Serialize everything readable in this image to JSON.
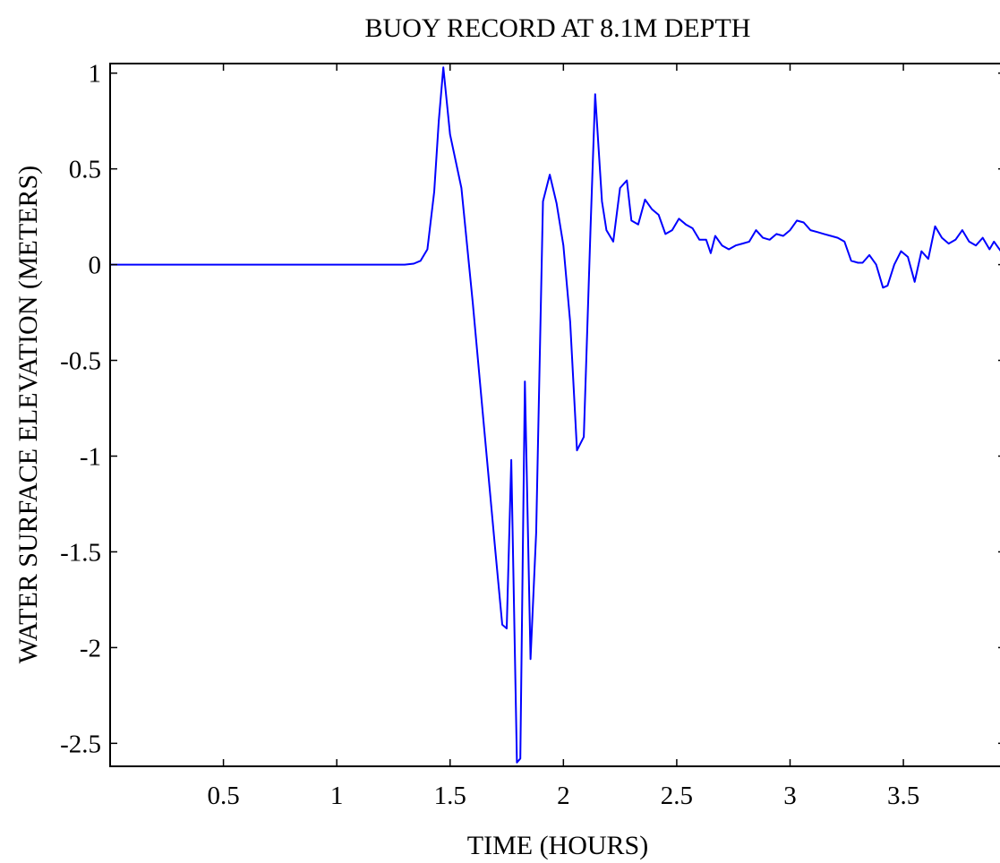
{
  "chart_data": {
    "type": "line",
    "title": "BUOY RECORD AT 8.1M DEPTH",
    "xlabel": "TIME (HOURS)",
    "ylabel": "WATER SURFACE ELEVATION (METERS)",
    "xlim": [
      0,
      3.95
    ],
    "ylim": [
      -2.62,
      1.05
    ],
    "xticks": [
      0.5,
      1,
      1.5,
      2,
      2.5,
      3,
      3.5
    ],
    "xtick_labels": [
      "0.5",
      "1",
      "1.5",
      "2",
      "2.5",
      "3",
      "3.5"
    ],
    "yticks": [
      1,
      0.5,
      0,
      -0.5,
      -1,
      -1.5,
      -2,
      -2.5
    ],
    "ytick_labels": [
      "1",
      "0.5",
      "0",
      "-0.5",
      "-1",
      "-1.5",
      "-2",
      "-2.5"
    ],
    "grid": false,
    "series": [
      {
        "color": "#0000ff",
        "x": [
          0,
          1.3,
          1.34,
          1.37,
          1.4,
          1.43,
          1.45,
          1.47,
          1.5,
          1.55,
          1.6,
          1.65,
          1.7,
          1.73,
          1.75,
          1.77,
          1.795,
          1.81,
          1.83,
          1.855,
          1.88,
          1.91,
          1.94,
          1.97,
          2.0,
          2.03,
          2.06,
          2.09,
          2.12,
          2.14,
          2.17,
          2.19,
          2.22,
          2.25,
          2.28,
          2.3,
          2.33,
          2.36,
          2.39,
          2.42,
          2.45,
          2.48,
          2.51,
          2.54,
          2.57,
          2.6,
          2.63,
          2.65,
          2.67,
          2.7,
          2.73,
          2.76,
          2.79,
          2.82,
          2.85,
          2.88,
          2.91,
          2.94,
          2.97,
          3.0,
          3.03,
          3.06,
          3.09,
          3.12,
          3.15,
          3.18,
          3.21,
          3.24,
          3.27,
          3.3,
          3.32,
          3.35,
          3.38,
          3.41,
          3.43,
          3.46,
          3.49,
          3.52,
          3.55,
          3.58,
          3.61,
          3.64,
          3.67,
          3.7,
          3.73,
          3.76,
          3.79,
          3.82,
          3.85,
          3.88,
          3.9,
          3.93,
          3.95
        ],
        "y": [
          0,
          0,
          0.005,
          0.02,
          0.08,
          0.38,
          0.75,
          1.03,
          0.68,
          0.4,
          -0.2,
          -0.85,
          -1.5,
          -1.88,
          -1.9,
          -1.02,
          -2.6,
          -2.58,
          -0.61,
          -2.06,
          -1.4,
          0.33,
          0.47,
          0.32,
          0.1,
          -0.3,
          -0.97,
          -0.9,
          0.2,
          0.89,
          0.33,
          0.18,
          0.12,
          0.4,
          0.44,
          0.23,
          0.21,
          0.34,
          0.29,
          0.26,
          0.16,
          0.18,
          0.24,
          0.21,
          0.19,
          0.13,
          0.13,
          0.06,
          0.15,
          0.1,
          0.08,
          0.1,
          0.11,
          0.12,
          0.18,
          0.14,
          0.13,
          0.16,
          0.15,
          0.18,
          0.23,
          0.22,
          0.18,
          0.17,
          0.16,
          0.15,
          0.14,
          0.12,
          0.02,
          0.01,
          0.01,
          0.05,
          0.0,
          -0.12,
          -0.11,
          0.0,
          0.07,
          0.04,
          -0.09,
          0.07,
          0.03,
          0.2,
          0.14,
          0.11,
          0.13,
          0.18,
          0.12,
          0.1,
          0.14,
          0.08,
          0.12,
          0.07,
          0.09
        ]
      }
    ]
  }
}
